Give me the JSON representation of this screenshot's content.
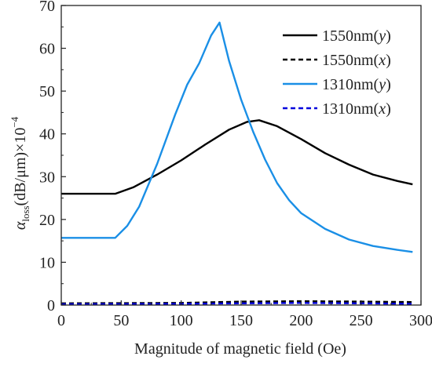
{
  "chart_data": {
    "type": "line",
    "xlabel": "Magnitude of magnetic field (Oe)",
    "ylabel": {
      "symbol": "α",
      "subscript": "loss",
      "units": "(dB/μm)×10",
      "exponent": "−4"
    },
    "xlim": [
      0,
      300
    ],
    "ylim": [
      0,
      70
    ],
    "xticks": [
      "0",
      "50",
      "100",
      "150",
      "200",
      "250",
      "300"
    ],
    "yticks": [
      "0",
      "10",
      "20",
      "30",
      "40",
      "50",
      "60",
      "70"
    ],
    "grid": false,
    "legend_position": "top-right",
    "series": [
      {
        "name": "1550nm(y)",
        "name_parts": {
          "text": "1550nm(",
          "italic": "y",
          "close": ")"
        },
        "color": "#000000",
        "dashed": false,
        "points": [
          [
            0,
            26
          ],
          [
            45,
            26
          ],
          [
            60,
            27.5
          ],
          [
            80,
            30.5
          ],
          [
            100,
            33.8
          ],
          [
            120,
            37.5
          ],
          [
            140,
            41
          ],
          [
            155,
            42.8
          ],
          [
            165,
            43.2
          ],
          [
            180,
            41.8
          ],
          [
            200,
            38.8
          ],
          [
            220,
            35.5
          ],
          [
            240,
            32.8
          ],
          [
            260,
            30.5
          ],
          [
            280,
            29
          ],
          [
            293,
            28.2
          ]
        ]
      },
      {
        "name": "1550nm(x)",
        "name_parts": {
          "text": "1550nm(",
          "italic": "x",
          "close": ")"
        },
        "color": "#000000",
        "dashed": true,
        "points": [
          [
            0,
            0.4
          ],
          [
            100,
            0.5
          ],
          [
            150,
            0.8
          ],
          [
            200,
            0.9
          ],
          [
            250,
            0.8
          ],
          [
            293,
            0.7
          ]
        ]
      },
      {
        "name": "1310nm(y)",
        "name_parts": {
          "text": "1310nm(",
          "italic": "y",
          "close": ")"
        },
        "color": "#1a8fe6",
        "dashed": false,
        "points": [
          [
            0,
            15.7
          ],
          [
            45,
            15.7
          ],
          [
            55,
            18.5
          ],
          [
            65,
            23
          ],
          [
            80,
            33
          ],
          [
            95,
            44.5
          ],
          [
            105,
            51.5
          ],
          [
            115,
            56.5
          ],
          [
            125,
            63
          ],
          [
            132,
            66
          ],
          [
            140,
            57
          ],
          [
            150,
            48
          ],
          [
            160,
            40.5
          ],
          [
            170,
            34
          ],
          [
            180,
            28.5
          ],
          [
            190,
            24.5
          ],
          [
            200,
            21.5
          ],
          [
            220,
            17.8
          ],
          [
            240,
            15.3
          ],
          [
            260,
            13.8
          ],
          [
            280,
            12.9
          ],
          [
            293,
            12.4
          ]
        ]
      },
      {
        "name": "1310nm(x)",
        "name_parts": {
          "text": "1310nm(",
          "italic": "x",
          "close": ")"
        },
        "color": "#0000dd",
        "dashed": true,
        "points": [
          [
            0,
            0.2
          ],
          [
            100,
            0.3
          ],
          [
            150,
            0.4
          ],
          [
            200,
            0.5
          ],
          [
            250,
            0.4
          ],
          [
            293,
            0.3
          ]
        ]
      }
    ]
  }
}
